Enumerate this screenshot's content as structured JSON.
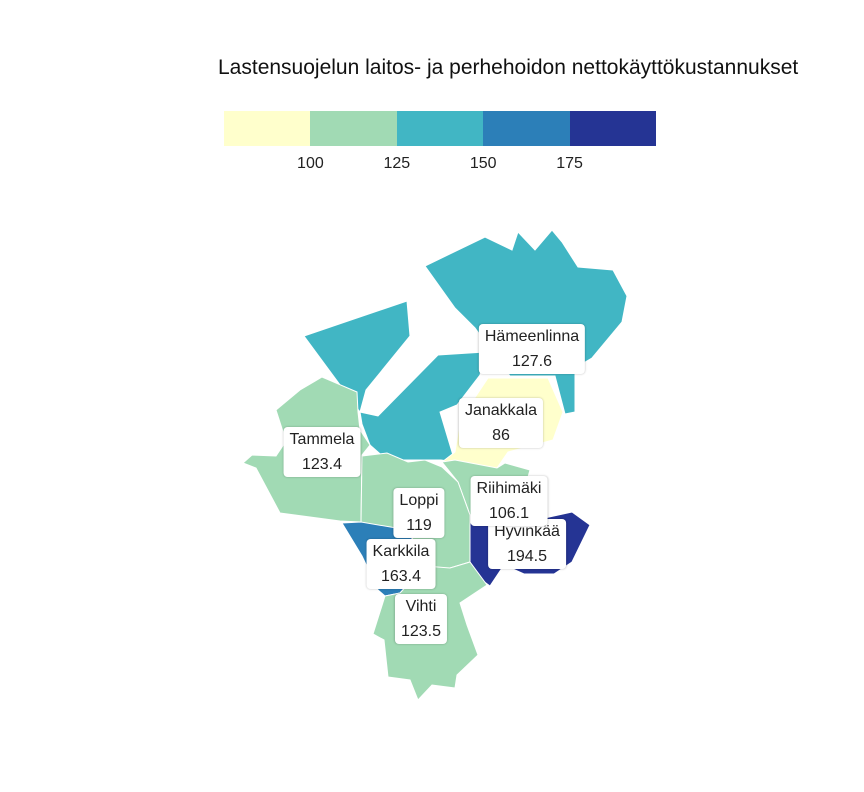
{
  "title": "Lastensuojelun laitos- ja perhehoidon nettokäyttökustannukset",
  "legend": {
    "colors": [
      "#ffffcc",
      "#a1dab4",
      "#41b6c4",
      "#2c7fb8",
      "#253494"
    ],
    "ticks": [
      "100",
      "125",
      "150",
      "175"
    ]
  },
  "regions": [
    {
      "name": "Hämeenlinna",
      "value": "127.6",
      "color": "#41b6c4"
    },
    {
      "name": "Janakkala",
      "value": "86",
      "color": "#ffffcc"
    },
    {
      "name": "Tammela",
      "value": "123.4",
      "color": "#a1dab4"
    },
    {
      "name": "Riihimäki",
      "value": "106.1",
      "color": "#a1dab4"
    },
    {
      "name": "Loppi",
      "value": "119",
      "color": "#a1dab4"
    },
    {
      "name": "Hyvinkää",
      "value": "194.5",
      "color": "#253494"
    },
    {
      "name": "Karkkila",
      "value": "163.4",
      "color": "#2c7fb8"
    },
    {
      "name": "Vihti",
      "value": "123.5",
      "color": "#a1dab4"
    }
  ]
}
